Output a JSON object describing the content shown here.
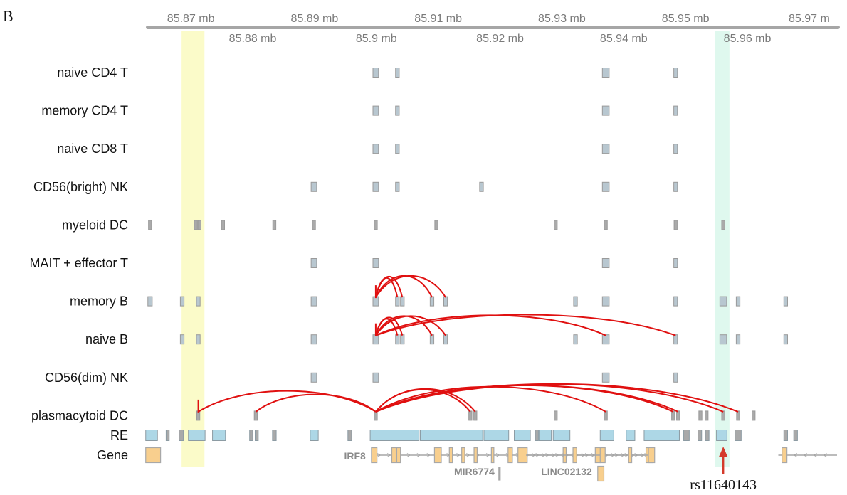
{
  "panel_label": "B",
  "axis": {
    "unit": "mb",
    "top_ticks": [
      {
        "value": 85.87,
        "label": "85.87 mb"
      },
      {
        "value": 85.89,
        "label": "85.89 mb"
      },
      {
        "value": 85.91,
        "label": "85.91 mb"
      },
      {
        "value": 85.93,
        "label": "85.93 mb"
      },
      {
        "value": 85.95,
        "label": "85.95 mb"
      },
      {
        "value": 85.97,
        "label": "85.97 m"
      }
    ],
    "bottom_ticks": [
      {
        "value": 85.88,
        "label": "85.88 mb"
      },
      {
        "value": 85.9,
        "label": "85.9 mb"
      },
      {
        "value": 85.92,
        "label": "85.92 mb"
      },
      {
        "value": 85.94,
        "label": "85.94 mb"
      },
      {
        "value": 85.96,
        "label": "85.96 mb"
      }
    ],
    "range": [
      85.8625,
      85.9745
    ]
  },
  "highlights": [
    {
      "name": "yellow",
      "start": 85.8685,
      "end": 85.8722,
      "color": "#fbfbc9"
    },
    {
      "name": "green",
      "start": 85.9547,
      "end": 85.9571,
      "color": "#dff8ee"
    }
  ],
  "tracks": [
    {
      "label": "naive CD4 T",
      "peaks": [
        {
          "pos": 85.8999,
          "w": 0.0009
        },
        {
          "pos": 85.9034,
          "w": 0.0006
        },
        {
          "pos": 85.9371,
          "w": 0.0011
        },
        {
          "pos": 85.9484,
          "w": 0.0006
        }
      ],
      "links": []
    },
    {
      "label": "memory CD4 T",
      "peaks": [
        {
          "pos": 85.8999,
          "w": 0.0009
        },
        {
          "pos": 85.9034,
          "w": 0.0006
        },
        {
          "pos": 85.9371,
          "w": 0.0011
        },
        {
          "pos": 85.9484,
          "w": 0.0006
        }
      ],
      "links": []
    },
    {
      "label": "naive CD8 T",
      "peaks": [
        {
          "pos": 85.8999,
          "w": 0.0009
        },
        {
          "pos": 85.9034,
          "w": 0.0006
        },
        {
          "pos": 85.9371,
          "w": 0.0011
        },
        {
          "pos": 85.9484,
          "w": 0.0006
        }
      ],
      "links": []
    },
    {
      "label": "CD56(bright) NK",
      "peaks": [
        {
          "pos": 85.8899,
          "w": 0.0009
        },
        {
          "pos": 85.8999,
          "w": 0.0009
        },
        {
          "pos": 85.9034,
          "w": 0.0006
        },
        {
          "pos": 85.917,
          "w": 0.0006
        },
        {
          "pos": 85.9371,
          "w": 0.0011
        },
        {
          "pos": 85.9484,
          "w": 0.0006
        }
      ],
      "links": []
    },
    {
      "label": "myeloid DC",
      "peaks": [
        {
          "pos": 85.8634,
          "w": 0.0005
        },
        {
          "pos": 85.8708,
          "w": 0.0005
        },
        {
          "pos": 85.8714,
          "w": 0.0005
        },
        {
          "pos": 85.8752,
          "w": 0.0005
        },
        {
          "pos": 85.8835,
          "w": 0.0005
        },
        {
          "pos": 85.8899,
          "w": 0.0005
        },
        {
          "pos": 85.8999,
          "w": 0.0005
        },
        {
          "pos": 85.9097,
          "w": 0.0005
        },
        {
          "pos": 85.929,
          "w": 0.0005
        },
        {
          "pos": 85.9371,
          "w": 0.0005
        },
        {
          "pos": 85.9484,
          "w": 0.0005
        },
        {
          "pos": 85.9561,
          "w": 0.0005
        }
      ],
      "links": []
    },
    {
      "label": "MAIT + effector T",
      "peaks": [
        {
          "pos": 85.8899,
          "w": 0.0009
        },
        {
          "pos": 85.8999,
          "w": 0.0009
        },
        {
          "pos": 85.9371,
          "w": 0.0011
        },
        {
          "pos": 85.9484,
          "w": 0.0006
        }
      ],
      "links": []
    },
    {
      "label": "memory B",
      "peaks": [
        {
          "pos": 85.8634,
          "w": 0.0007
        },
        {
          "pos": 85.8686,
          "w": 0.0006
        },
        {
          "pos": 85.8712,
          "w": 0.0006
        },
        {
          "pos": 85.8899,
          "w": 0.0009
        },
        {
          "pos": 85.8999,
          "w": 0.0009
        },
        {
          "pos": 85.9034,
          "w": 0.0006
        },
        {
          "pos": 85.9042,
          "w": 0.0006
        },
        {
          "pos": 85.909,
          "w": 0.0006
        },
        {
          "pos": 85.9112,
          "w": 0.0006
        },
        {
          "pos": 85.9322,
          "w": 0.0006
        },
        {
          "pos": 85.9371,
          "w": 0.0011
        },
        {
          "pos": 85.9484,
          "w": 0.0006
        },
        {
          "pos": 85.9561,
          "w": 0.0011
        },
        {
          "pos": 85.9585,
          "w": 0.0006
        },
        {
          "pos": 85.9662,
          "w": 0.0006
        }
      ],
      "links": [
        {
          "from": 85.8999,
          "to": 85.9034,
          "h": 28
        },
        {
          "from": 85.8999,
          "to": 85.9042,
          "h": 30
        },
        {
          "from": 85.8999,
          "to": 85.909,
          "h": 31
        },
        {
          "from": 85.8999,
          "to": 85.9112,
          "h": 31
        }
      ]
    },
    {
      "label": "naive B",
      "peaks": [
        {
          "pos": 85.8686,
          "w": 0.0006
        },
        {
          "pos": 85.8712,
          "w": 0.0006
        },
        {
          "pos": 85.8899,
          "w": 0.0009
        },
        {
          "pos": 85.8999,
          "w": 0.0009
        },
        {
          "pos": 85.9034,
          "w": 0.0006
        },
        {
          "pos": 85.9042,
          "w": 0.0006
        },
        {
          "pos": 85.909,
          "w": 0.0006
        },
        {
          "pos": 85.9112,
          "w": 0.0006
        },
        {
          "pos": 85.9322,
          "w": 0.0006
        },
        {
          "pos": 85.9371,
          "w": 0.0011
        },
        {
          "pos": 85.9484,
          "w": 0.0006
        },
        {
          "pos": 85.9561,
          "w": 0.0011
        },
        {
          "pos": 85.9585,
          "w": 0.0006
        },
        {
          "pos": 85.9662,
          "w": 0.0006
        }
      ],
      "links": [
        {
          "from": 85.8999,
          "to": 85.9034,
          "h": 24
        },
        {
          "from": 85.8999,
          "to": 85.9042,
          "h": 26
        },
        {
          "from": 85.8999,
          "to": 85.909,
          "h": 28
        },
        {
          "from": 85.8999,
          "to": 85.9112,
          "h": 28
        },
        {
          "from": 85.8999,
          "to": 85.9371,
          "h": 29
        },
        {
          "from": 85.8999,
          "to": 85.9484,
          "h": 30
        }
      ]
    },
    {
      "label": "CD56(dim) NK",
      "peaks": [
        {
          "pos": 85.8899,
          "w": 0.0009
        },
        {
          "pos": 85.8999,
          "w": 0.0009
        },
        {
          "pos": 85.9371,
          "w": 0.0011
        },
        {
          "pos": 85.9484,
          "w": 0.0006
        }
      ],
      "links": []
    },
    {
      "label": "plasmacytoid DC",
      "peaks": [
        {
          "pos": 85.8712,
          "w": 0.0005
        },
        {
          "pos": 85.8805,
          "w": 0.0005
        },
        {
          "pos": 85.8999,
          "w": 0.0005
        },
        {
          "pos": 85.9152,
          "w": 0.0005
        },
        {
          "pos": 85.916,
          "w": 0.0005
        },
        {
          "pos": 85.929,
          "w": 0.0005
        },
        {
          "pos": 85.9371,
          "w": 0.0005
        },
        {
          "pos": 85.948,
          "w": 0.0005
        },
        {
          "pos": 85.9488,
          "w": 0.0005
        },
        {
          "pos": 85.9524,
          "w": 0.0005
        },
        {
          "pos": 85.9534,
          "w": 0.0005
        },
        {
          "pos": 85.9561,
          "w": 0.0005
        },
        {
          "pos": 85.9585,
          "w": 0.0005
        },
        {
          "pos": 85.961,
          "w": 0.0005
        }
      ],
      "links": [
        {
          "from": 85.8712,
          "to": 85.8999,
          "h": 30
        },
        {
          "from": 85.8805,
          "to": 85.8999,
          "h": 25
        },
        {
          "from": 85.8999,
          "to": 85.9152,
          "h": 32
        },
        {
          "from": 85.8999,
          "to": 85.916,
          "h": 33
        },
        {
          "from": 85.8999,
          "to": 85.9371,
          "h": 36
        },
        {
          "from": 85.8999,
          "to": 85.948,
          "h": 38
        },
        {
          "from": 85.8999,
          "to": 85.9488,
          "h": 38
        },
        {
          "from": 85.8999,
          "to": 85.9561,
          "h": 40
        },
        {
          "from": 85.8999,
          "to": 85.9585,
          "h": 40
        }
      ]
    }
  ],
  "re_track": {
    "label": "RE",
    "elements": [
      {
        "start": 85.8627,
        "end": 85.8646
      },
      {
        "start": 85.866,
        "end": 85.8665
      },
      {
        "start": 85.8681,
        "end": 85.8688
      },
      {
        "start": 85.8696,
        "end": 85.8723
      },
      {
        "start": 85.8735,
        "end": 85.8756
      },
      {
        "start": 85.8795,
        "end": 85.88
      },
      {
        "start": 85.8804,
        "end": 85.8809
      },
      {
        "start": 85.8832,
        "end": 85.8838
      },
      {
        "start": 85.8893,
        "end": 85.8906
      },
      {
        "start": 85.8954,
        "end": 85.896
      },
      {
        "start": 85.899,
        "end": 85.9069
      },
      {
        "start": 85.9071,
        "end": 85.9172
      },
      {
        "start": 85.9174,
        "end": 85.9214
      },
      {
        "start": 85.9223,
        "end": 85.9249
      },
      {
        "start": 85.9257,
        "end": 85.9262
      },
      {
        "start": 85.9263,
        "end": 85.9283
      },
      {
        "start": 85.9286,
        "end": 85.9313
      },
      {
        "start": 85.9362,
        "end": 85.9384
      },
      {
        "start": 85.9404,
        "end": 85.9418
      },
      {
        "start": 85.9433,
        "end": 85.949
      },
      {
        "start": 85.9497,
        "end": 85.9506
      },
      {
        "start": 85.952,
        "end": 85.9526
      },
      {
        "start": 85.9532,
        "end": 85.9538
      },
      {
        "start": 85.955,
        "end": 85.9567
      },
      {
        "start": 85.958,
        "end": 85.959
      },
      {
        "start": 85.9659,
        "end": 85.9665
      },
      {
        "start": 85.9675,
        "end": 85.9681
      }
    ]
  },
  "gene_track": {
    "label": "Gene",
    "genes": [
      {
        "name": "IRF8",
        "strand": "+",
        "row": 1,
        "start": 85.8992,
        "end": 85.9446,
        "exons": [
          [
            85.8992,
            85.9001
          ],
          [
            85.9025,
            85.9032
          ],
          [
            85.9033,
            85.9039
          ],
          [
            85.9094,
            85.9105
          ],
          [
            85.9118,
            85.9123
          ],
          [
            85.9138,
            85.9143
          ],
          [
            85.9158,
            85.9163
          ],
          [
            85.9186,
            85.919
          ],
          [
            85.9213,
            85.922
          ],
          [
            85.9229,
            85.9244
          ],
          [
            85.9302,
            85.9307
          ],
          [
            85.9354,
            85.9363
          ],
          [
            85.9436,
            85.9446
          ]
        ]
      },
      {
        "name": "MIR6774",
        "strand": "",
        "row": 2,
        "start": 85.9198,
        "end": 85.92,
        "exons": [
          [
            85.9198,
            85.92
          ]
        ]
      },
      {
        "name": "LINC02132",
        "strand": "+",
        "row": 1,
        "start": 85.9242,
        "end": 85.945,
        "exons": [
          [
            85.9318,
            85.9324
          ],
          [
            85.9362,
            85.937
          ],
          [
            85.9408,
            85.9413
          ],
          [
            85.944,
            85.945
          ]
        ]
      },
      {
        "name": "",
        "strand": "",
        "row": 2,
        "start": 85.9358,
        "end": 85.9368,
        "exons": [
          [
            85.9358,
            85.9368
          ]
        ]
      },
      {
        "name": "",
        "strand": "",
        "row": 1,
        "start": 85.8627,
        "end": 85.8651,
        "exons": [
          [
            85.8627,
            85.8651
          ]
        ]
      },
      {
        "name": "",
        "strand": "-",
        "row": 1,
        "start": 85.965,
        "end": 85.9745,
        "exons": [
          [
            85.9656,
            85.9664
          ]
        ]
      }
    ]
  },
  "snp": {
    "label": "rs11640143",
    "pos": 85.9561
  },
  "colors": {
    "axis": "#a6a6a6",
    "tick_text": "#7a7a7a",
    "peak_fill": "#b8c7d0",
    "peak_stroke": "#9a9a9a",
    "re_fill": "#add7e6",
    "re_stroke": "#8c9ba3",
    "exon_fill": "#f8cf8e",
    "exon_stroke": "#a8a8a8",
    "gene_line": "#a6a6a6",
    "gene_text": "#8a8a8a",
    "link": "#e01010",
    "arrow": "#d43a2b",
    "label": "#111111"
  }
}
